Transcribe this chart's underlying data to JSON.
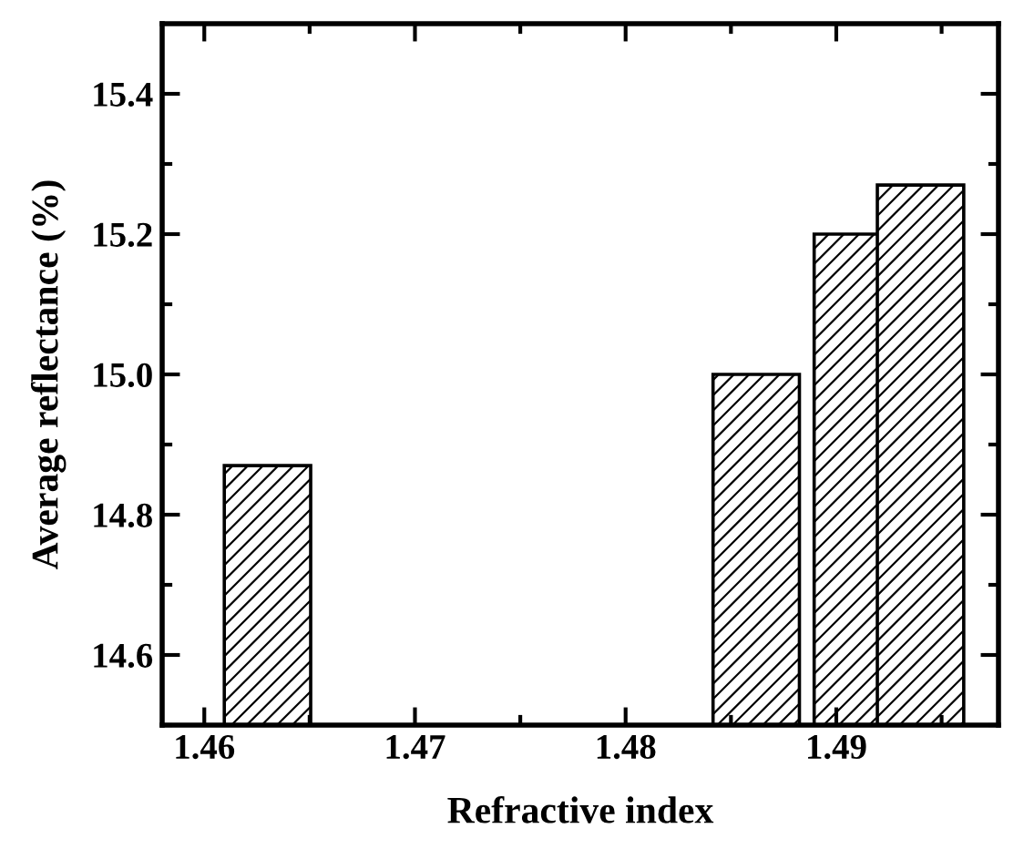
{
  "chart_data": {
    "type": "bar",
    "xlabel": "Refractive index",
    "ylabel": "Average reflectance (%)",
    "x": [
      1.463,
      1.4862,
      1.491,
      1.494
    ],
    "values": [
      14.87,
      15.0,
      15.2,
      15.27
    ],
    "color": "#000000",
    "xlim": [
      1.458,
      1.4977
    ],
    "ylim": [
      14.5,
      15.5
    ],
    "xticks": [
      1.46,
      {
        "value": 1.465,
        "label": null
      },
      1.47,
      {
        "value": 1.475,
        "label": null
      },
      1.48,
      {
        "value": 1.485,
        "label": null
      },
      1.49,
      {
        "value": 1.495,
        "label": null
      }
    ],
    "yticks": [
      {
        "value": 14.5,
        "label": null
      },
      14.6,
      {
        "value": 14.7,
        "label": null
      },
      14.8,
      {
        "value": 14.9,
        "label": null
      },
      {
        "value": 15.0,
        "label": "15.0"
      },
      {
        "value": 15.1,
        "label": null
      },
      15.2,
      {
        "value": 15.3,
        "label": null
      },
      15.4
    ],
    "grid": false,
    "legend": false
  }
}
